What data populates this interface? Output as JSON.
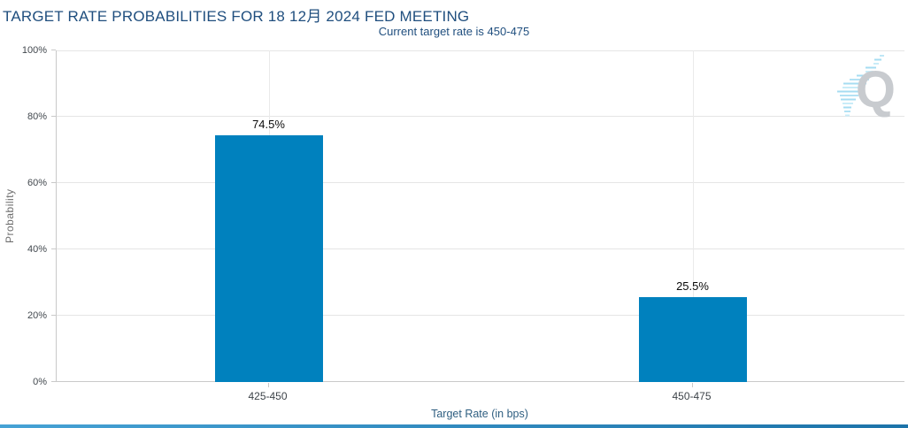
{
  "header": {
    "title": "TARGET RATE PROBABILITIES FOR 18 12月 2024 FED MEETING",
    "subtitle": "Current target rate is 450-475"
  },
  "menu": {
    "icon": "hamburger-menu-icon"
  },
  "watermark": {
    "letter": "Q"
  },
  "chart_data": {
    "type": "bar",
    "title": "TARGET RATE PROBABILITIES FOR 18 12月 2024 FED MEETING",
    "subtitle": "Current target rate is 450-475",
    "categories": [
      "425-450",
      "450-475"
    ],
    "values": [
      74.5,
      25.5
    ],
    "value_labels": [
      "74.5%",
      "25.5%"
    ],
    "xlabel": "Target Rate (in bps)",
    "ylabel": "Probability",
    "ylim": [
      0,
      100
    ],
    "ytick_interval": 20,
    "yticks": [
      "0%",
      "20%",
      "40%",
      "60%",
      "80%",
      "100%"
    ],
    "grid": true,
    "legend": "none",
    "bar_color": "#0081be"
  },
  "colors": {
    "title_text": "#1f4e7e",
    "bar": "#0081be",
    "grid": "#e5e5e5",
    "axis_line": "#c9c9c9",
    "bottom_bar_left": "#46a2d5",
    "bottom_bar_right": "#1c73a9"
  }
}
